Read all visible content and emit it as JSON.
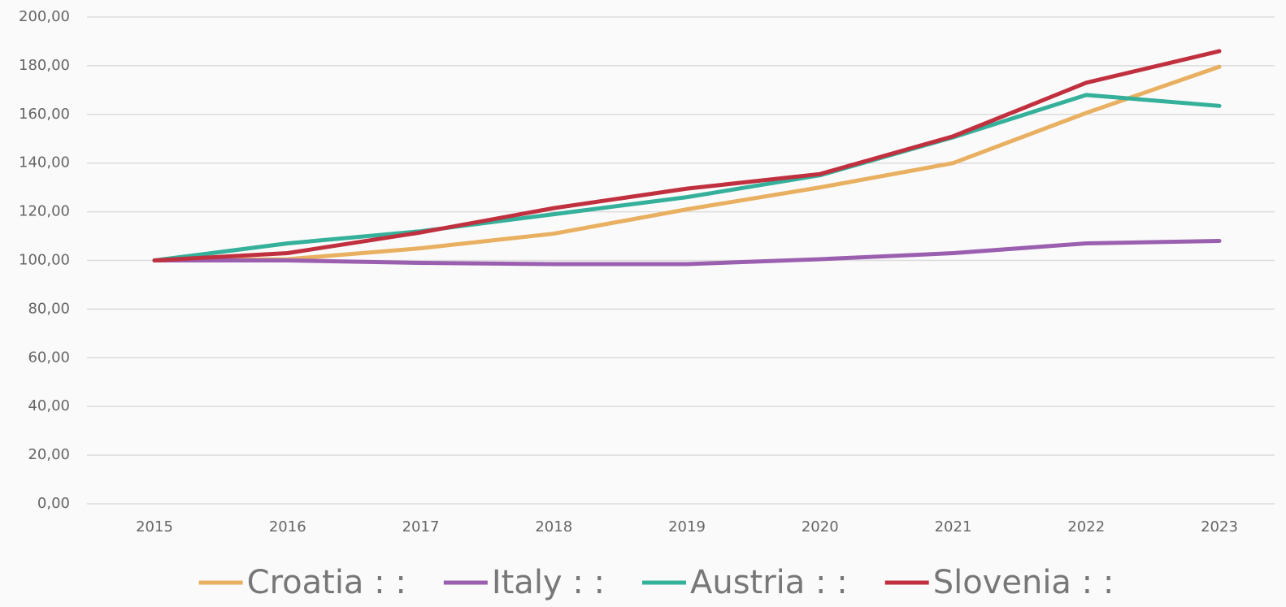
{
  "chart_data": {
    "type": "line",
    "categories": [
      "2015",
      "2016",
      "2017",
      "2018",
      "2019",
      "2020",
      "2021",
      "2022",
      "2023"
    ],
    "series": [
      {
        "name": "Croatia : :",
        "color": "#e8b060",
        "values": [
          100,
          100.5,
          105,
          111,
          121,
          130,
          140,
          160.6,
          179.6
        ]
      },
      {
        "name": "Italy : :",
        "color": "#9b5fb0",
        "values": [
          100,
          100,
          99,
          98.5,
          98.5,
          100.5,
          103,
          107,
          108
        ]
      },
      {
        "name": "Austria : :",
        "color": "#35b09a",
        "values": [
          100,
          107,
          112,
          119,
          126,
          135,
          150.6,
          168,
          163.5
        ]
      },
      {
        "name": "Slovenia : :",
        "color": "#c0303f",
        "values": [
          100,
          103,
          111.5,
          121.5,
          129.5,
          135.5,
          151,
          173,
          186
        ]
      }
    ],
    "ylim": [
      0,
      200
    ],
    "yticks": [
      {
        "value": 0,
        "label": "0,00"
      },
      {
        "value": 20,
        "label": "20,00"
      },
      {
        "value": 40,
        "label": "40,00"
      },
      {
        "value": 60,
        "label": "60,00"
      },
      {
        "value": 80,
        "label": "80,00"
      },
      {
        "value": 100,
        "label": "100,00"
      },
      {
        "value": 120,
        "label": "120,00"
      },
      {
        "value": 140,
        "label": "140,00"
      },
      {
        "value": 160,
        "label": "160,00"
      },
      {
        "value": 180,
        "label": "180,00"
      },
      {
        "value": 200,
        "label": "200,00"
      }
    ],
    "grid": true,
    "legend": "bottom"
  }
}
